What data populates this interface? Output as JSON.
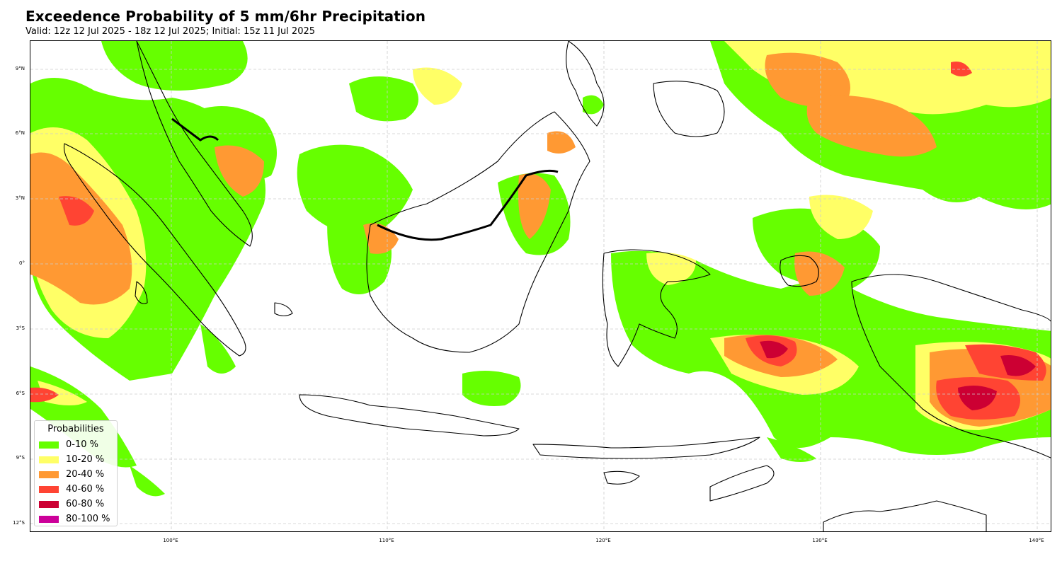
{
  "header": {
    "title": "Exceedence Probability of 5 mm/6hr Precipitation",
    "subtitle": "Valid: 12z 12 Jul 2025 - 18z 12 Jul 2025; Initial: 15z 11 Jul 2025"
  },
  "axes": {
    "lat_ticks": [
      "9°N",
      "6°N",
      "3°N",
      "0°",
      "3°S",
      "6°S",
      "9°S",
      "12°S"
    ],
    "lon_ticks": [
      "100°E",
      "110°E",
      "120°E",
      "130°E",
      "140°E"
    ]
  },
  "legend": {
    "title": "Probabilities",
    "items": [
      {
        "label": "0-10 %",
        "color": "#66ff00"
      },
      {
        "label": "10-20 %",
        "color": "#ffff66"
      },
      {
        "label": "20-40 %",
        "color": "#ff9933"
      },
      {
        "label": "40-60 %",
        "color": "#ff4433"
      },
      {
        "label": "60-80 %",
        "color": "#cc0033"
      },
      {
        "label": "80-100 %",
        "color": "#cc0099"
      }
    ]
  },
  "colors": {
    "green": "#66ff00",
    "yellow": "#ffff66",
    "orange": "#ff9933",
    "red": "#ff4433",
    "crimson": "#cc0033",
    "magenta": "#cc0099",
    "coastline": "#000000",
    "grid": "#cccccc"
  }
}
